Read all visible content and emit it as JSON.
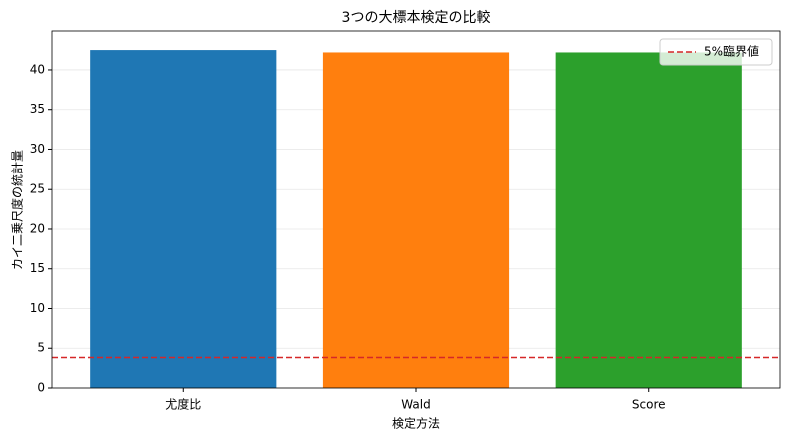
{
  "chart_data": {
    "type": "bar",
    "title": "3つの大標本検定の比較",
    "x_label": "検定方法",
    "y_label": "カイ二乗尺度の統計量",
    "categories": [
      "尤度比",
      "Wald",
      "Score"
    ],
    "values": [
      42.5,
      42.2,
      42.2
    ],
    "colors": [
      "#1f77b4",
      "#ff7f0e",
      "#2ca02c"
    ],
    "ylim": [
      0,
      44.9
    ],
    "yticks": [
      0,
      5,
      10,
      15,
      20,
      25,
      30,
      35,
      40
    ],
    "grid": true,
    "reference_line": {
      "name": "5%臨界値",
      "value": 3.84,
      "color": "#d62728"
    },
    "legend": "upper right"
  }
}
